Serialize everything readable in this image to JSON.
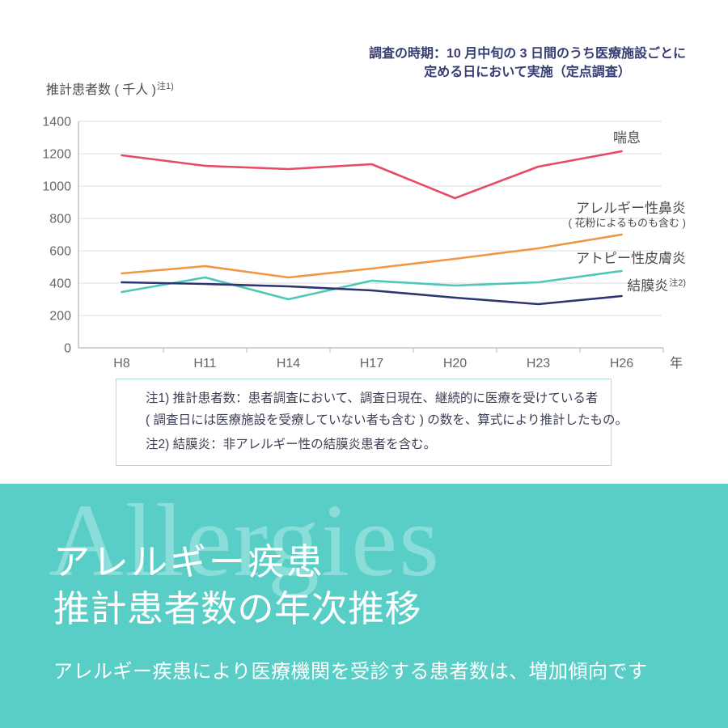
{
  "annotation": {
    "line1": "調査の時期：10 月中旬の 3 日間のうち医療施設ごとに",
    "line2": "定める日において実施（定点調査）"
  },
  "y_axis_title": {
    "text": "推計患者数 ( 千人 )",
    "note_ref": "注1)"
  },
  "chart_data": {
    "type": "line",
    "categories": [
      "H8",
      "H11",
      "H14",
      "H17",
      "H20",
      "H23",
      "H26"
    ],
    "x_axis_unit": "年",
    "ylabel": "推計患者数 ( 千人 )",
    "ylim": [
      0,
      1400
    ],
    "ytick_step": 200,
    "grid": true,
    "legend_position": "right-of-line-ends",
    "series": [
      {
        "key": "asthma",
        "name": "喘息",
        "color": "#e64a64",
        "values": [
          1190,
          1125,
          1105,
          1135,
          925,
          1120,
          1215
        ]
      },
      {
        "key": "allergic-rhinitis",
        "name": "アレルギー性鼻炎",
        "subname": "( 花粉によるものも含む )",
        "color": "#ef9741",
        "values": [
          460,
          505,
          435,
          490,
          550,
          615,
          700
        ]
      },
      {
        "key": "atopic-dermatitis",
        "name": "アトピー性皮膚炎",
        "color": "#4cc8b7",
        "values": [
          345,
          435,
          300,
          415,
          385,
          405,
          475
        ]
      },
      {
        "key": "conjunctivitis",
        "name": "結膜炎",
        "note_ref": "注2)",
        "color": "#2e3472",
        "values": [
          405,
          395,
          380,
          355,
          310,
          270,
          320
        ]
      }
    ],
    "colors": {
      "gridline": "#dedede",
      "axis": "#c4c4c4",
      "tick_text": "#666666",
      "unit_text": "#555555"
    }
  },
  "notes": {
    "line1": "注1) 推計患者数：患者調査において、調査日現在、継続的に医療を受けている者",
    "line2": "( 調査日には医療施設を受療していない者も含む ) の数を、算式により推計したもの。",
    "line3": "注2) 結膜炎：非アレルギー性の結膜炎患者を含む。"
  },
  "footer": {
    "watermark": "Allergies",
    "title_line1": "アレルギー疾患",
    "title_line2": "推計患者数の年次推移",
    "subtitle": "アレルギー疾患により医療機関を受診する患者数は、増加傾向です",
    "bg_color": "#58cec7"
  }
}
